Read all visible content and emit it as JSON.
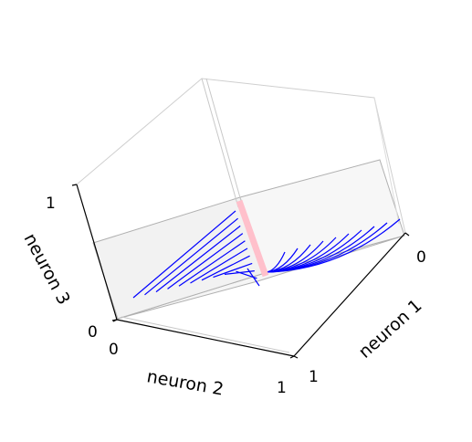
{
  "chart_data": {
    "type": "line",
    "projection": "3d",
    "title": "",
    "xlabel": "neuron 1",
    "ylabel": "neuron 2",
    "zlabel": "neuron 3",
    "xlim": [
      0,
      1
    ],
    "ylim": [
      0,
      1
    ],
    "zlim": [
      0,
      1
    ],
    "x_ticks": [
      "0",
      "1"
    ],
    "y_ticks": [
      "0",
      "1"
    ],
    "z_ticks": [
      "0",
      "1"
    ],
    "grid": true,
    "colors": {
      "trajectories": "#0000ff",
      "highlight": "#ffc0cb",
      "pane_left": "#f2f2f2",
      "pane_back": "#f7f7f7",
      "pane_floor": "#f5f5f5",
      "pane_edge": "#b0b0b0"
    },
    "highlight_segment": {
      "from": [
        0,
        0,
        0.3
      ],
      "to": [
        0,
        0,
        0
      ]
    },
    "fan_1": {
      "description": "",
      "x_starts": [
        0.0,
        0.1,
        0.2,
        0.3,
        0.4,
        0.5,
        0.6,
        0.7,
        0.8,
        0.9,
        1.0
      ],
      "x_end": 0,
      "y_start": 1,
      "y_end": 0
    },
    "fan_2": {
      "y_starts": [
        0.0,
        0.1,
        0.2,
        0.3,
        0.4,
        0.5,
        0.6,
        0.7,
        0.8,
        0.9
      ],
      "y_end": 0,
      "x_end": 0
    }
  }
}
